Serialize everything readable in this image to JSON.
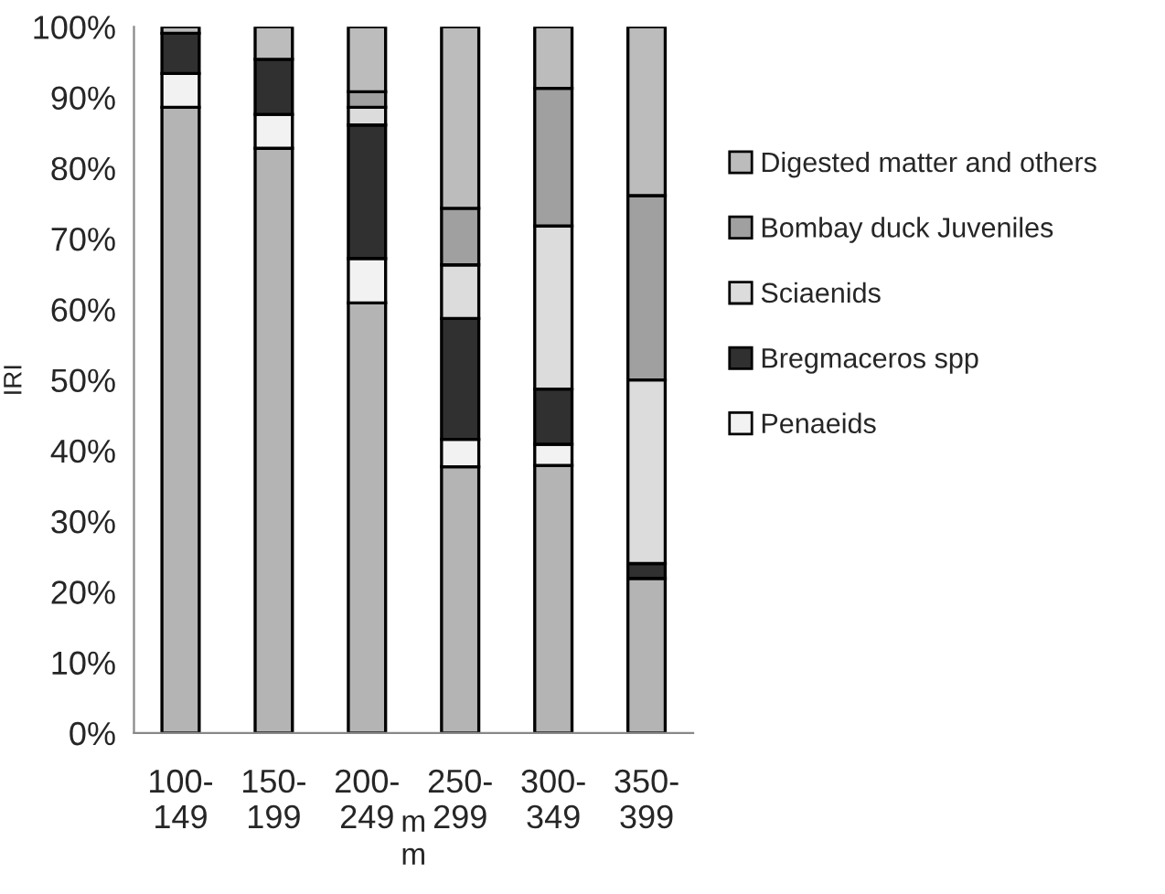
{
  "chart_data": {
    "type": "bar",
    "stacked": true,
    "ylabel": "IRI",
    "xlabel": "m\nm",
    "categories": [
      "100-\n149",
      "150-\n199",
      "200-\n249",
      "250-\n299",
      "300-\n349",
      "350-\n399"
    ],
    "series": [
      {
        "color": "#b4b4b4",
        "values": [
          88.6,
          82.8,
          60.9,
          37.7,
          37.9,
          21.9
        ]
      },
      {
        "name": "Penaeids",
        "color": "#f2f2f2",
        "values": [
          4.8,
          4.8,
          6.3,
          3.9,
          3.0,
          0
        ]
      },
      {
        "name": "Bregmaceros spp",
        "color": "#303030",
        "values": [
          5.7,
          7.8,
          18.9,
          17.1,
          7.8,
          2.1
        ]
      },
      {
        "name": "Sciaenids",
        "color": "#dcdcdc",
        "values": [
          0,
          0,
          2.5,
          7.6,
          23.1,
          26.0
        ]
      },
      {
        "name": "Bombay duck Juveniles",
        "color": "#a0a0a0",
        "values": [
          0,
          0,
          2.2,
          8.0,
          19.5,
          26.1
        ]
      },
      {
        "name": "Digested matter and others",
        "color": "#bcbcbc",
        "values": [
          0.9,
          4.6,
          9.2,
          25.7,
          8.7,
          23.9
        ]
      }
    ],
    "ylim": [
      0,
      100
    ],
    "yticks": [
      {
        "value": 0,
        "label": "0%"
      },
      {
        "value": 10,
        "label": "10%"
      },
      {
        "value": 20,
        "label": "20%"
      },
      {
        "value": 30,
        "label": "30%"
      },
      {
        "value": 40,
        "label": "40%"
      },
      {
        "value": 50,
        "label": "50%"
      },
      {
        "value": 60,
        "label": "60%"
      },
      {
        "value": 70,
        "label": "70%"
      },
      {
        "value": 80,
        "label": "80%"
      },
      {
        "value": 90,
        "label": "90%"
      },
      {
        "value": 100,
        "label": "100%"
      }
    ],
    "legend": "right",
    "grid": false
  }
}
